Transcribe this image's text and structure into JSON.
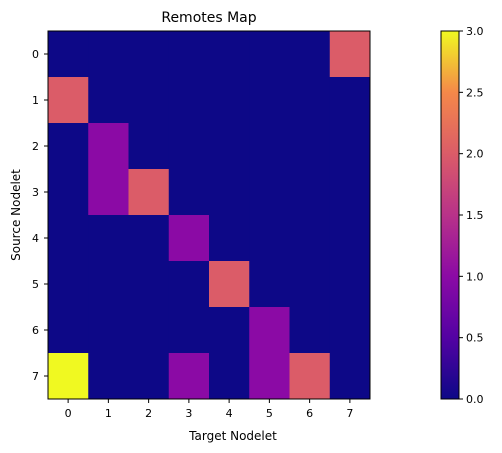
{
  "chart_data": {
    "type": "heatmap",
    "title": "Remotes Map",
    "xlabel": "Target Nodelet",
    "ylabel": "Source Nodelet",
    "x_categories": [
      "0",
      "1",
      "2",
      "3",
      "4",
      "5",
      "6",
      "7"
    ],
    "y_categories": [
      "0",
      "1",
      "2",
      "3",
      "4",
      "5",
      "6",
      "7"
    ],
    "values": [
      [
        0,
        0,
        0,
        0,
        0,
        0,
        0,
        2
      ],
      [
        2,
        0,
        0,
        0,
        0,
        0,
        0,
        0
      ],
      [
        0,
        1,
        0,
        0,
        0,
        0,
        0,
        0
      ],
      [
        0,
        1,
        2,
        0,
        0,
        0,
        0,
        0
      ],
      [
        0,
        0,
        0,
        1,
        0,
        0,
        0,
        0
      ],
      [
        0,
        0,
        0,
        0,
        2,
        0,
        0,
        0
      ],
      [
        0,
        0,
        0,
        0,
        0,
        1,
        0,
        0
      ],
      [
        3,
        0,
        0,
        1,
        0,
        1,
        2,
        0
      ]
    ],
    "colormap": "plasma",
    "vmin": 0,
    "vmax": 3,
    "colorbar_ticks": [
      "0.0",
      "0.5",
      "1.0",
      "1.5",
      "2.0",
      "2.5",
      "3.0"
    ],
    "grid": false
  }
}
